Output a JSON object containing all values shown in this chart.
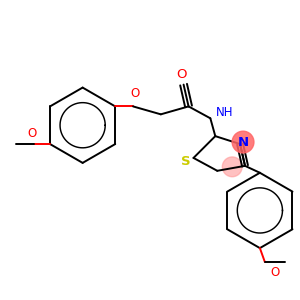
{
  "bg_color": "#ffffff",
  "bond_color": "#000000",
  "figsize": [
    3.0,
    3.0
  ],
  "dpi": 100,
  "colors": {
    "O": "#ff0000",
    "N": "#0000ff",
    "S": "#cccc00",
    "bond": "#000000",
    "highlight_N": "#ff6666",
    "highlight_C": "#ff9999"
  },
  "lw": 1.4,
  "fs": 8.5
}
